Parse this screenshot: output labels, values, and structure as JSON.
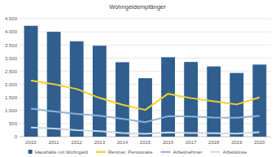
{
  "chart_data": {
    "type": "bar",
    "title": "Wohngeldempfänger",
    "categories": [
      "2010",
      "2011",
      "2012",
      "2013",
      "2014",
      "2015",
      "2016",
      "2017",
      "2018",
      "2019",
      "2020"
    ],
    "series": [
      {
        "name": "Haushalte mit Wohngeld",
        "type": "bar",
        "color": "#2f5e8f",
        "values": [
          4230,
          4000,
          3640,
          3470,
          2840,
          2230,
          3030,
          2850,
          2680,
          2430,
          2750
        ]
      },
      {
        "name": "Rentner, Pensionäre",
        "type": "line",
        "color": "#f2cf2e",
        "values": [
          2140,
          2000,
          1820,
          1480,
          1220,
          1020,
          1640,
          1470,
          1350,
          1230,
          1500
        ]
      },
      {
        "name": "Arbeitnehmer",
        "type": "line",
        "color": "#8fb3d8",
        "values": [
          1070,
          960,
          870,
          800,
          680,
          550,
          780,
          770,
          730,
          720,
          790
        ]
      },
      {
        "name": "Arbeitslose",
        "type": "line",
        "color": "#cbd8e8",
        "values": [
          350,
          310,
          250,
          210,
          140,
          110,
          160,
          140,
          130,
          120,
          170
        ]
      }
    ],
    "ylim": [
      0,
      4500
    ],
    "yticks": [
      0,
      500,
      {
        "value": 1000,
        "label": "1.000"
      },
      {
        "value": 1500,
        "label": "1.500"
      },
      {
        "value": 2000,
        "label": "2.000"
      },
      {
        "value": 2500,
        "label": "2.500"
      },
      {
        "value": 3000,
        "label": "3.000"
      },
      {
        "value": 3500,
        "label": "3.500"
      },
      {
        "value": 4000,
        "label": "4.000"
      },
      {
        "value": 4500,
        "label": "4.500"
      }
    ],
    "grid": true,
    "legend": "bottom"
  }
}
